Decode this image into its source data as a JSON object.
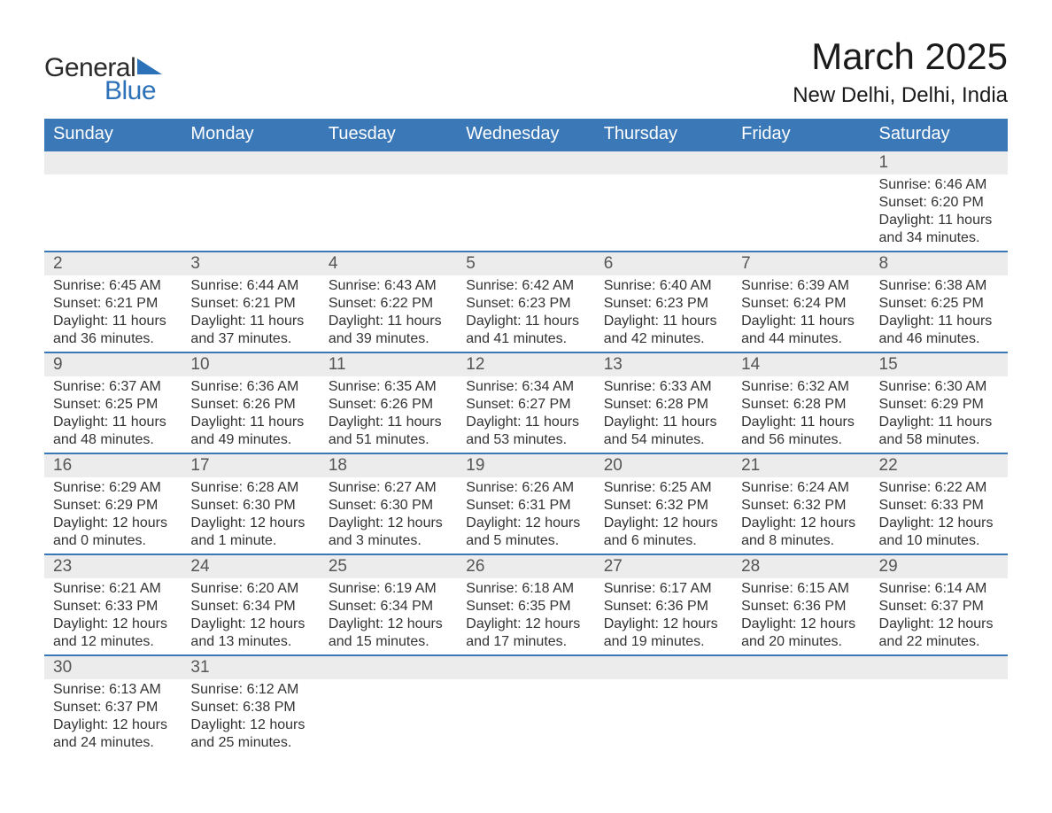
{
  "brand": {
    "general": "General",
    "blue": "Blue"
  },
  "title": "March 2025",
  "location": "New Delhi, Delhi, India",
  "colors": {
    "header_bg": "#3b78b8",
    "header_text": "#ffffff",
    "daynum_bg": "#ececec",
    "border": "#3b78b8",
    "text": "#333333",
    "brand_blue": "#2d72b8"
  },
  "typography": {
    "title_fontsize": 42,
    "location_fontsize": 24,
    "header_fontsize": 20,
    "daynum_fontsize": 19,
    "detail_fontsize": 16
  },
  "layout": {
    "columns": 7,
    "rows": 6
  },
  "weekdays": [
    "Sunday",
    "Monday",
    "Tuesday",
    "Wednesday",
    "Thursday",
    "Friday",
    "Saturday"
  ],
  "weeks": [
    [
      {
        "day": "",
        "sunrise": "",
        "sunset": "",
        "daylight": ""
      },
      {
        "day": "",
        "sunrise": "",
        "sunset": "",
        "daylight": ""
      },
      {
        "day": "",
        "sunrise": "",
        "sunset": "",
        "daylight": ""
      },
      {
        "day": "",
        "sunrise": "",
        "sunset": "",
        "daylight": ""
      },
      {
        "day": "",
        "sunrise": "",
        "sunset": "",
        "daylight": ""
      },
      {
        "day": "",
        "sunrise": "",
        "sunset": "",
        "daylight": ""
      },
      {
        "day": "1",
        "sunrise": "Sunrise: 6:46 AM",
        "sunset": "Sunset: 6:20 PM",
        "daylight": "Daylight: 11 hours and 34 minutes."
      }
    ],
    [
      {
        "day": "2",
        "sunrise": "Sunrise: 6:45 AM",
        "sunset": "Sunset: 6:21 PM",
        "daylight": "Daylight: 11 hours and 36 minutes."
      },
      {
        "day": "3",
        "sunrise": "Sunrise: 6:44 AM",
        "sunset": "Sunset: 6:21 PM",
        "daylight": "Daylight: 11 hours and 37 minutes."
      },
      {
        "day": "4",
        "sunrise": "Sunrise: 6:43 AM",
        "sunset": "Sunset: 6:22 PM",
        "daylight": "Daylight: 11 hours and 39 minutes."
      },
      {
        "day": "5",
        "sunrise": "Sunrise: 6:42 AM",
        "sunset": "Sunset: 6:23 PM",
        "daylight": "Daylight: 11 hours and 41 minutes."
      },
      {
        "day": "6",
        "sunrise": "Sunrise: 6:40 AM",
        "sunset": "Sunset: 6:23 PM",
        "daylight": "Daylight: 11 hours and 42 minutes."
      },
      {
        "day": "7",
        "sunrise": "Sunrise: 6:39 AM",
        "sunset": "Sunset: 6:24 PM",
        "daylight": "Daylight: 11 hours and 44 minutes."
      },
      {
        "day": "8",
        "sunrise": "Sunrise: 6:38 AM",
        "sunset": "Sunset: 6:25 PM",
        "daylight": "Daylight: 11 hours and 46 minutes."
      }
    ],
    [
      {
        "day": "9",
        "sunrise": "Sunrise: 6:37 AM",
        "sunset": "Sunset: 6:25 PM",
        "daylight": "Daylight: 11 hours and 48 minutes."
      },
      {
        "day": "10",
        "sunrise": "Sunrise: 6:36 AM",
        "sunset": "Sunset: 6:26 PM",
        "daylight": "Daylight: 11 hours and 49 minutes."
      },
      {
        "day": "11",
        "sunrise": "Sunrise: 6:35 AM",
        "sunset": "Sunset: 6:26 PM",
        "daylight": "Daylight: 11 hours and 51 minutes."
      },
      {
        "day": "12",
        "sunrise": "Sunrise: 6:34 AM",
        "sunset": "Sunset: 6:27 PM",
        "daylight": "Daylight: 11 hours and 53 minutes."
      },
      {
        "day": "13",
        "sunrise": "Sunrise: 6:33 AM",
        "sunset": "Sunset: 6:28 PM",
        "daylight": "Daylight: 11 hours and 54 minutes."
      },
      {
        "day": "14",
        "sunrise": "Sunrise: 6:32 AM",
        "sunset": "Sunset: 6:28 PM",
        "daylight": "Daylight: 11 hours and 56 minutes."
      },
      {
        "day": "15",
        "sunrise": "Sunrise: 6:30 AM",
        "sunset": "Sunset: 6:29 PM",
        "daylight": "Daylight: 11 hours and 58 minutes."
      }
    ],
    [
      {
        "day": "16",
        "sunrise": "Sunrise: 6:29 AM",
        "sunset": "Sunset: 6:29 PM",
        "daylight": "Daylight: 12 hours and 0 minutes."
      },
      {
        "day": "17",
        "sunrise": "Sunrise: 6:28 AM",
        "sunset": "Sunset: 6:30 PM",
        "daylight": "Daylight: 12 hours and 1 minute."
      },
      {
        "day": "18",
        "sunrise": "Sunrise: 6:27 AM",
        "sunset": "Sunset: 6:30 PM",
        "daylight": "Daylight: 12 hours and 3 minutes."
      },
      {
        "day": "19",
        "sunrise": "Sunrise: 6:26 AM",
        "sunset": "Sunset: 6:31 PM",
        "daylight": "Daylight: 12 hours and 5 minutes."
      },
      {
        "day": "20",
        "sunrise": "Sunrise: 6:25 AM",
        "sunset": "Sunset: 6:32 PM",
        "daylight": "Daylight: 12 hours and 6 minutes."
      },
      {
        "day": "21",
        "sunrise": "Sunrise: 6:24 AM",
        "sunset": "Sunset: 6:32 PM",
        "daylight": "Daylight: 12 hours and 8 minutes."
      },
      {
        "day": "22",
        "sunrise": "Sunrise: 6:22 AM",
        "sunset": "Sunset: 6:33 PM",
        "daylight": "Daylight: 12 hours and 10 minutes."
      }
    ],
    [
      {
        "day": "23",
        "sunrise": "Sunrise: 6:21 AM",
        "sunset": "Sunset: 6:33 PM",
        "daylight": "Daylight: 12 hours and 12 minutes."
      },
      {
        "day": "24",
        "sunrise": "Sunrise: 6:20 AM",
        "sunset": "Sunset: 6:34 PM",
        "daylight": "Daylight: 12 hours and 13 minutes."
      },
      {
        "day": "25",
        "sunrise": "Sunrise: 6:19 AM",
        "sunset": "Sunset: 6:34 PM",
        "daylight": "Daylight: 12 hours and 15 minutes."
      },
      {
        "day": "26",
        "sunrise": "Sunrise: 6:18 AM",
        "sunset": "Sunset: 6:35 PM",
        "daylight": "Daylight: 12 hours and 17 minutes."
      },
      {
        "day": "27",
        "sunrise": "Sunrise: 6:17 AM",
        "sunset": "Sunset: 6:36 PM",
        "daylight": "Daylight: 12 hours and 19 minutes."
      },
      {
        "day": "28",
        "sunrise": "Sunrise: 6:15 AM",
        "sunset": "Sunset: 6:36 PM",
        "daylight": "Daylight: 12 hours and 20 minutes."
      },
      {
        "day": "29",
        "sunrise": "Sunrise: 6:14 AM",
        "sunset": "Sunset: 6:37 PM",
        "daylight": "Daylight: 12 hours and 22 minutes."
      }
    ],
    [
      {
        "day": "30",
        "sunrise": "Sunrise: 6:13 AM",
        "sunset": "Sunset: 6:37 PM",
        "daylight": "Daylight: 12 hours and 24 minutes."
      },
      {
        "day": "31",
        "sunrise": "Sunrise: 6:12 AM",
        "sunset": "Sunset: 6:38 PM",
        "daylight": "Daylight: 12 hours and 25 minutes."
      },
      {
        "day": "",
        "sunrise": "",
        "sunset": "",
        "daylight": ""
      },
      {
        "day": "",
        "sunrise": "",
        "sunset": "",
        "daylight": ""
      },
      {
        "day": "",
        "sunrise": "",
        "sunset": "",
        "daylight": ""
      },
      {
        "day": "",
        "sunrise": "",
        "sunset": "",
        "daylight": ""
      },
      {
        "day": "",
        "sunrise": "",
        "sunset": "",
        "daylight": ""
      }
    ]
  ]
}
